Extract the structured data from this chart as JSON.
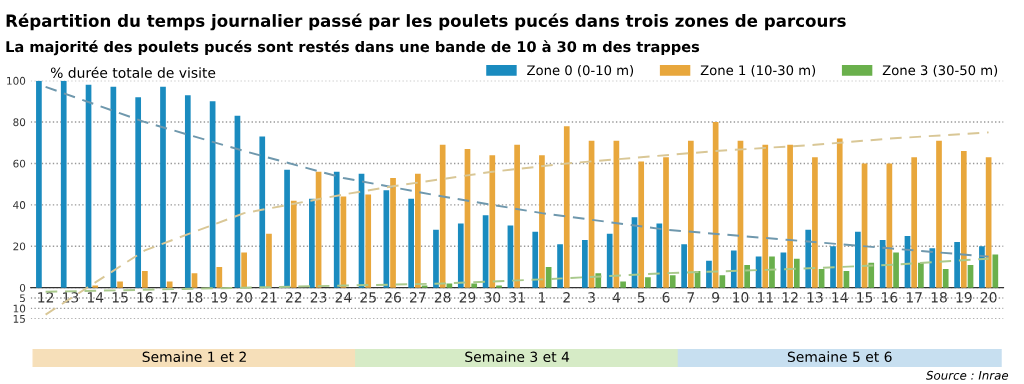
{
  "chart_data": {
    "type": "bar",
    "title": "Répartition du temps journalier passé par les poulets pucés dans trois zones de parcours",
    "subtitle": "La majorité des poulets pucés sont restés dans une bande de 10 à 30 m des trappes",
    "ylabel": "% durée totale de visite",
    "categories": [
      "12",
      "13",
      "14",
      "15",
      "16",
      "17",
      "18",
      "19",
      "20",
      "21",
      "22",
      "23",
      "24",
      "25",
      "26",
      "27",
      "28",
      "29",
      "30",
      "31",
      "1",
      "2",
      "3",
      "4",
      "5",
      "6",
      "7",
      "9",
      "10",
      "11",
      "12",
      "13",
      "14",
      "15",
      "16",
      "17",
      "18",
      "19",
      "20"
    ],
    "series": [
      {
        "name": "Zone 0 (0-10 m)",
        "color": "#1a8bbf",
        "values": [
          100,
          100,
          98,
          97,
          92,
          97,
          93,
          90,
          83,
          73,
          57,
          43,
          56,
          55,
          47,
          43,
          28,
          31,
          35,
          30,
          27,
          21,
          23,
          26,
          34,
          31,
          21,
          13,
          18,
          15,
          17,
          28,
          20,
          27,
          23,
          25,
          19,
          22,
          20
        ]
      },
      {
        "name": "Zone 1 (10-30 m)",
        "color": "#e8a73c",
        "values": [
          0,
          0,
          1,
          3,
          8,
          3,
          7,
          10,
          17,
          26,
          42,
          56,
          44,
          45,
          53,
          55,
          69,
          67,
          64,
          69,
          64,
          78,
          71,
          71,
          61,
          63,
          71,
          80,
          71,
          69,
          69,
          63,
          72,
          60,
          60,
          63,
          71,
          66,
          63
        ]
      },
      {
        "name": "Zone 3 (30-50 m)",
        "color": "#6ab04c",
        "values": [
          0,
          0,
          0,
          0,
          0,
          0,
          0,
          0,
          0,
          0,
          null,
          0,
          0,
          0,
          0,
          1,
          2,
          2,
          1,
          0,
          10,
          0,
          7,
          3,
          5,
          6,
          8,
          6,
          11,
          15,
          14,
          9,
          8,
          12,
          17,
          12,
          9,
          11,
          16
        ]
      },
      {
        "type": "line",
        "line_style": "dashed",
        "color": "#6f98ad",
        "values": [
          97,
          null,
          null,
          null,
          80,
          null,
          null,
          null,
          66,
          null,
          null,
          null,
          53,
          null,
          null,
          null,
          44,
          null,
          null,
          null,
          36,
          null,
          null,
          null,
          null,
          28,
          null,
          null,
          null,
          null,
          23,
          null,
          null,
          null,
          19,
          null,
          null,
          null,
          15
        ]
      },
      {
        "type": "line",
        "line_style": "dashed",
        "color": "#d9c796",
        "values": [
          -13,
          null,
          null,
          null,
          18,
          null,
          null,
          null,
          36,
          null,
          null,
          null,
          45,
          null,
          49,
          null,
          null,
          null,
          56,
          null,
          null,
          60,
          null,
          null,
          null,
          64,
          null,
          66,
          null,
          null,
          null,
          69,
          null,
          null,
          72,
          null,
          null,
          null,
          75
        ]
      },
      {
        "type": "line",
        "line_style": "dashed",
        "color": "#a9c98c",
        "values": [
          -2,
          null,
          null,
          null,
          -1,
          null,
          null,
          null,
          0,
          null,
          null,
          null,
          1,
          null,
          null,
          null,
          2,
          null,
          null,
          null,
          4,
          null,
          null,
          null,
          null,
          7,
          null,
          null,
          null,
          null,
          9,
          null,
          null,
          null,
          11,
          null,
          null,
          null,
          14
        ]
      }
    ],
    "ylim": [
      -15,
      100
    ],
    "yticks": [
      {
        "value": -15,
        "label": "15"
      },
      {
        "value": -10,
        "label": "10"
      },
      {
        "value": -5,
        "label": "5"
      },
      0,
      20,
      40,
      60,
      80,
      100
    ],
    "grid": "y",
    "legend": "top right",
    "annotations": [
      "Semaine 1 et 2",
      "Semaine 3 et 4",
      "Semaine 5 et 6",
      "Source : Inrae"
    ]
  }
}
